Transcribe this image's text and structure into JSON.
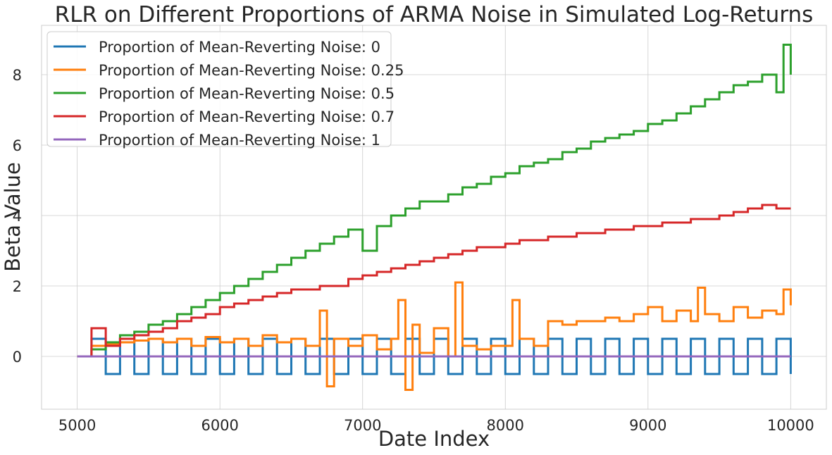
{
  "chart_data": {
    "type": "line",
    "title": "RLR on Different Proportions of ARMA Noise in Simulated Log-Returns",
    "xlabel": "Date Index",
    "ylabel": "Beta Value",
    "xlim": [
      4750,
      10250
    ],
    "ylim": [
      -1.5,
      9.4
    ],
    "xticks": [
      5000,
      6000,
      7000,
      8000,
      9000,
      10000
    ],
    "yticks": [
      0,
      2,
      4,
      6,
      8
    ],
    "grid": true,
    "legend_position": "top-left",
    "series": [
      {
        "name": "Proportion of Mean-Reverting Noise: 0",
        "color": "#1f77b4",
        "x": [
          5000,
          5100,
          5200,
          5300,
          5400,
          5500,
          5600,
          5700,
          5800,
          5900,
          6000,
          6100,
          6200,
          6300,
          6400,
          6500,
          6600,
          6700,
          6800,
          6900,
          7000,
          7100,
          7200,
          7300,
          7400,
          7500,
          7600,
          7700,
          7800,
          7900,
          8000,
          8100,
          8200,
          8300,
          8400,
          8500,
          8600,
          8700,
          8800,
          8900,
          9000,
          9100,
          9200,
          9300,
          9400,
          9500,
          9600,
          9700,
          9800,
          9900,
          10000
        ],
        "y": [
          0,
          0.5,
          -0.5,
          0.5,
          -0.5,
          0.5,
          -0.5,
          0.5,
          -0.5,
          0.5,
          -0.5,
          0.5,
          -0.5,
          0.5,
          -0.5,
          0.5,
          -0.5,
          0.5,
          -0.5,
          0.5,
          -0.5,
          0.5,
          -0.5,
          0.5,
          -0.5,
          0.5,
          -0.5,
          0.5,
          -0.5,
          0.5,
          -0.5,
          0.5,
          -0.5,
          0.5,
          -0.5,
          0.5,
          -0.5,
          0.5,
          -0.5,
          0.5,
          -0.5,
          0.5,
          -0.5,
          0.5,
          -0.5,
          0.5,
          -0.5,
          0.5,
          -0.5,
          0.5,
          -0.5
        ]
      },
      {
        "name": "Proportion of Mean-Reverting Noise: 0.25",
        "color": "#ff7f0e",
        "x": [
          5000,
          5100,
          5200,
          5300,
          5400,
          5500,
          5600,
          5700,
          5800,
          5900,
          6000,
          6100,
          6200,
          6300,
          6400,
          6500,
          6600,
          6700,
          6750,
          6800,
          6900,
          7000,
          7100,
          7200,
          7250,
          7300,
          7350,
          7400,
          7500,
          7600,
          7650,
          7700,
          7800,
          7900,
          8000,
          8050,
          8100,
          8200,
          8300,
          8400,
          8500,
          8600,
          8700,
          8800,
          8900,
          9000,
          9100,
          9200,
          9300,
          9350,
          9400,
          9500,
          9600,
          9700,
          9800,
          9900,
          9950,
          10000
        ],
        "y": [
          0,
          0.3,
          0.35,
          0.4,
          0.45,
          0.5,
          0.4,
          0.5,
          0.3,
          0.55,
          0.4,
          0.5,
          0.3,
          0.6,
          0.4,
          0.5,
          0.3,
          1.3,
          -0.85,
          0.5,
          0.3,
          0.6,
          0.2,
          0.5,
          1.6,
          -0.95,
          0.9,
          0.1,
          0.8,
          0.0,
          2.1,
          0.3,
          0.2,
          0.3,
          0.3,
          1.6,
          0.5,
          0.3,
          1.0,
          0.9,
          1.0,
          1.0,
          1.1,
          1.0,
          1.2,
          1.4,
          1.0,
          1.3,
          1.0,
          1.95,
          1.2,
          1.0,
          1.4,
          1.1,
          1.3,
          1.2,
          1.9,
          1.45
        ]
      },
      {
        "name": "Proportion of Mean-Reverting Noise: 0.5",
        "color": "#2ca02c",
        "x": [
          5000,
          5100,
          5200,
          5300,
          5400,
          5500,
          5600,
          5700,
          5800,
          5900,
          6000,
          6100,
          6200,
          6300,
          6400,
          6500,
          6600,
          6700,
          6800,
          6900,
          7000,
          7100,
          7200,
          7300,
          7400,
          7500,
          7600,
          7700,
          7800,
          7900,
          8000,
          8100,
          8200,
          8300,
          8400,
          8500,
          8600,
          8700,
          8800,
          8900,
          9000,
          9100,
          9200,
          9300,
          9400,
          9500,
          9600,
          9700,
          9800,
          9900,
          9950,
          10000
        ],
        "y": [
          0,
          0.2,
          0.4,
          0.6,
          0.7,
          0.9,
          1.0,
          1.2,
          1.4,
          1.6,
          1.8,
          2.0,
          2.2,
          2.4,
          2.6,
          2.8,
          3.0,
          3.2,
          3.4,
          3.6,
          3.0,
          3.7,
          4.0,
          4.2,
          4.4,
          4.4,
          4.6,
          4.8,
          4.9,
          5.1,
          5.2,
          5.4,
          5.5,
          5.6,
          5.8,
          5.9,
          6.1,
          6.2,
          6.3,
          6.4,
          6.6,
          6.7,
          6.9,
          7.1,
          7.3,
          7.5,
          7.7,
          7.8,
          8.0,
          7.5,
          8.85,
          8.0
        ]
      },
      {
        "name": "Proportion of Mean-Reverting Noise: 0.7",
        "color": "#d62728",
        "x": [
          5000,
          5100,
          5200,
          5300,
          5400,
          5500,
          5600,
          5700,
          5800,
          5900,
          6000,
          6100,
          6200,
          6300,
          6400,
          6500,
          6600,
          6700,
          6800,
          6900,
          7000,
          7100,
          7200,
          7300,
          7400,
          7500,
          7600,
          7700,
          7800,
          7900,
          8000,
          8100,
          8200,
          8300,
          8400,
          8500,
          8600,
          8700,
          8800,
          8900,
          9000,
          9100,
          9200,
          9300,
          9400,
          9500,
          9600,
          9700,
          9800,
          9900,
          10000
        ],
        "y": [
          0,
          0.8,
          0.3,
          0.5,
          0.6,
          0.7,
          0.8,
          1.0,
          1.1,
          1.2,
          1.4,
          1.5,
          1.6,
          1.7,
          1.8,
          1.9,
          1.9,
          2.0,
          2.0,
          2.2,
          2.3,
          2.4,
          2.5,
          2.6,
          2.7,
          2.8,
          2.9,
          3.0,
          3.1,
          3.1,
          3.2,
          3.3,
          3.3,
          3.4,
          3.4,
          3.5,
          3.5,
          3.6,
          3.6,
          3.7,
          3.7,
          3.8,
          3.8,
          3.9,
          3.9,
          4.0,
          4.1,
          4.2,
          4.3,
          4.2,
          4.2
        ]
      },
      {
        "name": "Proportion of Mean-Reverting Noise: 1",
        "color": "#9467bd",
        "x": [
          5000,
          10000
        ],
        "y": [
          0,
          0
        ]
      }
    ]
  }
}
